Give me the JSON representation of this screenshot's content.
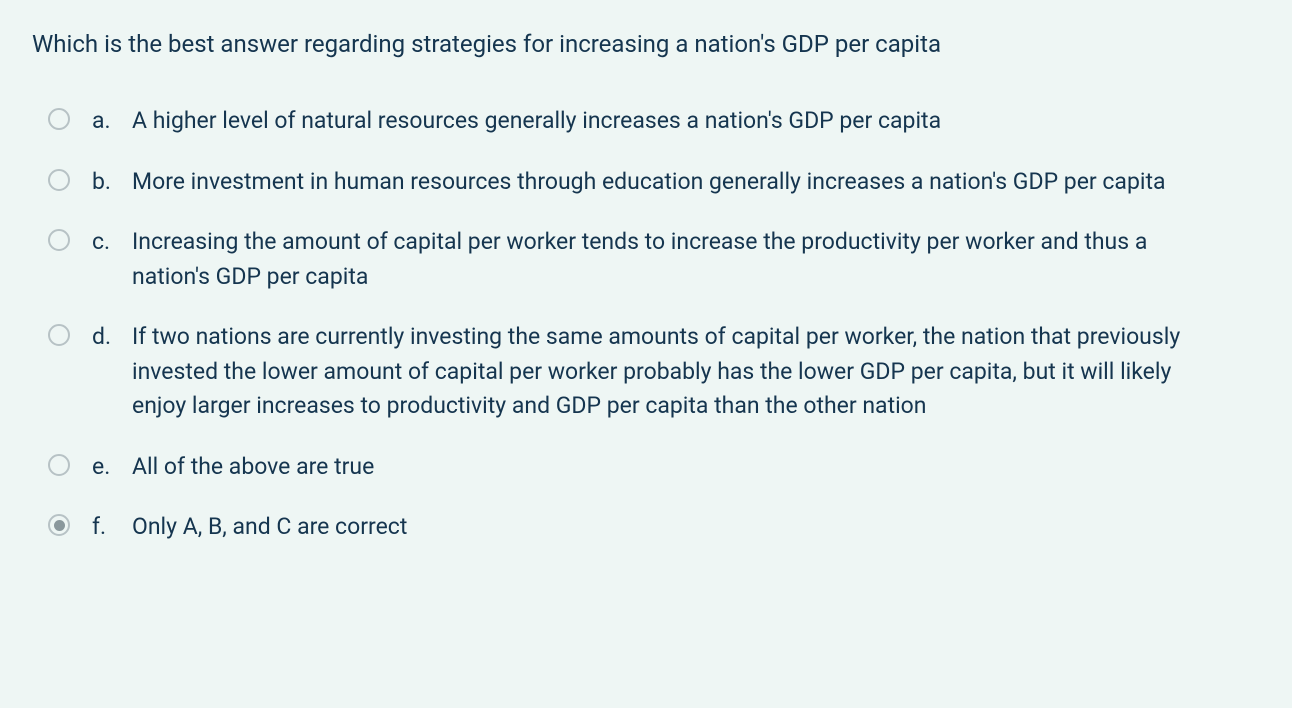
{
  "background_color": "#eef6f4",
  "text_color": "#15354f",
  "radio_border_color": "#b7c2c5",
  "radio_fill_color": "#8a989c",
  "question_fontsize": 24,
  "option_fontsize": 23,
  "question": "Which is the best answer regarding strategies for increasing a nation's GDP per capita",
  "options": [
    {
      "letter": "a.",
      "text": "A higher level of natural resources generally increases a nation's GDP per capita",
      "selected": false
    },
    {
      "letter": "b.",
      "text": "More investment in human resources through education generally increases a nation's GDP per capita",
      "selected": false
    },
    {
      "letter": "c.",
      "text": "Increasing the amount of capital per worker tends to increase the productivity per worker and thus a nation's GDP per capita",
      "selected": false
    },
    {
      "letter": "d.",
      "text": "If two nations are currently investing the same amounts of capital per worker, the nation that previously invested the lower amount of capital per worker probably has the lower GDP per capita, but it will likely enjoy larger increases to productivity and GDP per capita than the other nation",
      "selected": false
    },
    {
      "letter": "e.",
      "text": "All of the above are true",
      "selected": false
    },
    {
      "letter": "f.",
      "text": "Only A, B, and C are correct",
      "selected": true
    }
  ]
}
